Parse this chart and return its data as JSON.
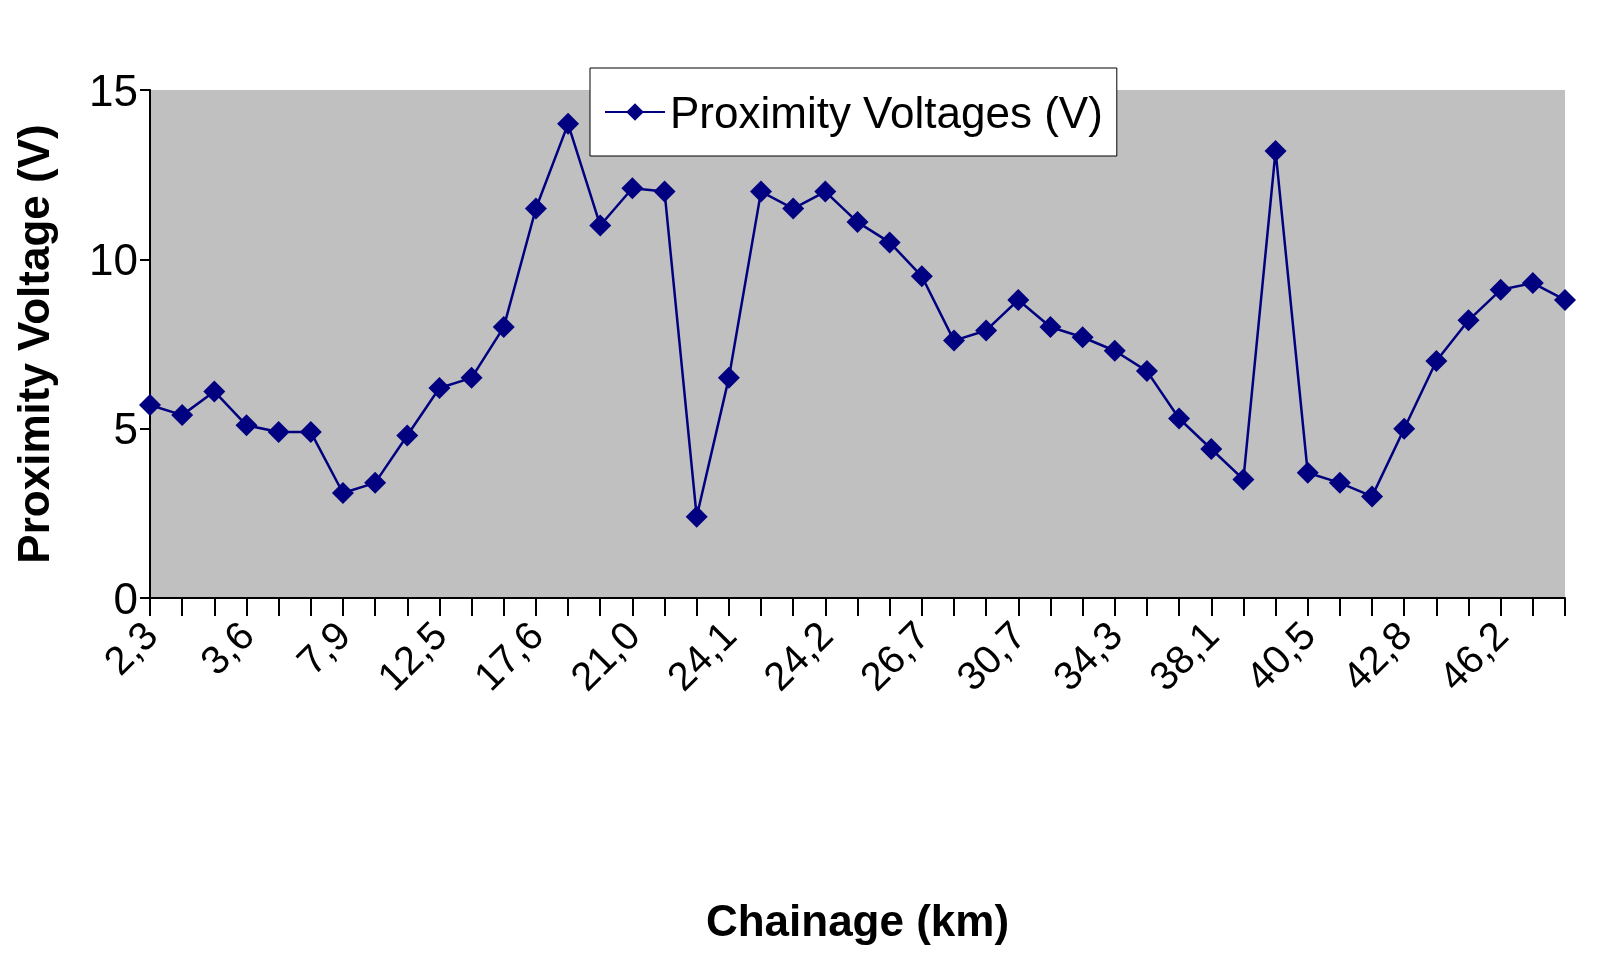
{
  "chart_data": {
    "type": "line",
    "xlabel": "Chainage (km)",
    "ylabel": "Proximity Voltage (V)",
    "categories": [
      "2,3",
      null,
      null,
      "3,6",
      null,
      null,
      "7,9",
      null,
      null,
      "12,5",
      null,
      null,
      "17,6",
      null,
      null,
      "21,0",
      null,
      null,
      "24,1",
      null,
      null,
      "24,2",
      null,
      null,
      "26,7",
      null,
      null,
      "30,7",
      null,
      null,
      "34,3",
      null,
      null,
      "38,1",
      null,
      null,
      "40,5",
      null,
      null,
      "42,8",
      null,
      null,
      "46,2",
      null,
      null
    ],
    "series": [
      {
        "name": "Proximity Voltages (V)",
        "color": "#000080",
        "values": [
          5.7,
          5.4,
          6.1,
          5.1,
          4.9,
          4.9,
          3.1,
          3.4,
          4.8,
          6.2,
          6.5,
          8.0,
          11.5,
          14.0,
          11.0,
          12.1,
          12.0,
          2.4,
          6.5,
          12.0,
          11.5,
          12.0,
          11.1,
          10.5,
          9.5,
          7.6,
          7.9,
          8.8,
          8.0,
          7.7,
          7.3,
          6.7,
          5.3,
          4.4,
          3.5,
          13.2,
          3.7,
          3.4,
          3.0,
          5.0,
          7.0,
          8.2,
          9.1,
          9.3,
          8.8
        ]
      }
    ],
    "ylim": [
      0,
      15
    ],
    "yticks": [
      0,
      5,
      10,
      15
    ],
    "grid": false,
    "legend": "top",
    "marker": "diamond",
    "line_style": "solid"
  }
}
